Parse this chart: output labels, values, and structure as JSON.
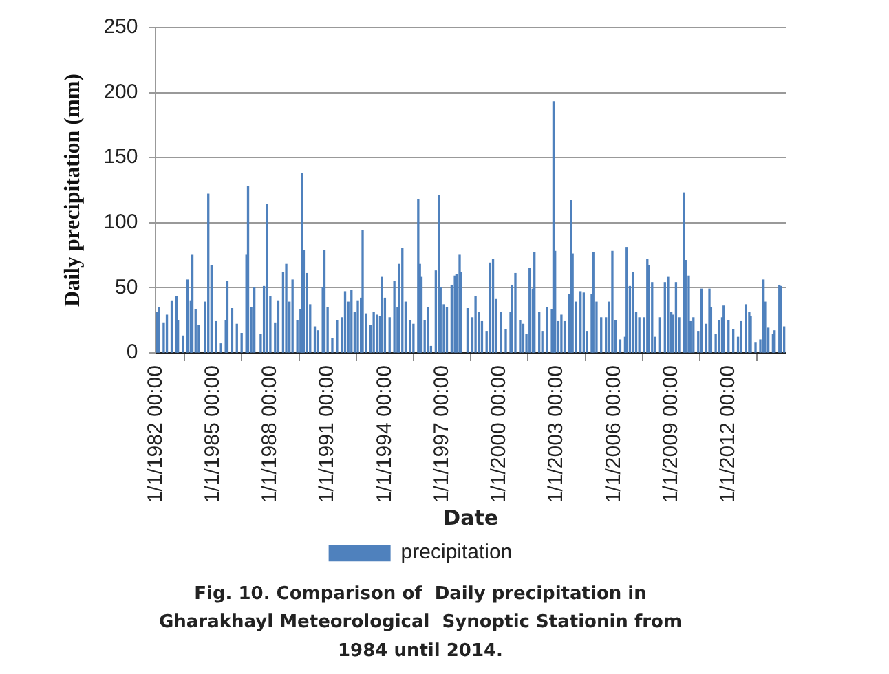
{
  "chart_data": {
    "type": "bar",
    "title": "Fig. 10. Comparison of  Daily precipitation in\nGharakhayl Meteorological  Synoptic Stationin from\n1984 until 2014.",
    "xlabel": "Date",
    "ylabel": "Daily precipitation (mm)",
    "x": [
      "1982-01-15",
      "1982-03",
      "1982-06",
      "1982-08",
      "1982-11",
      "1983-02",
      "1983-03",
      "1983-06",
      "1983-09",
      "1983-11",
      "1983-12",
      "1984-02",
      "1984-04",
      "1984-08",
      "1984-10",
      "1984-12",
      "1985-03",
      "1985-06",
      "1985-09",
      "1985-10",
      "1986-01",
      "1986-04",
      "1986-07",
      "1986-10",
      "1986-11",
      "1987-01",
      "1987-03",
      "1987-07",
      "1987-09",
      "1987-11",
      "1988-01",
      "1988-04",
      "1988-06",
      "1988-09",
      "1988-11",
      "1989-01",
      "1989-03",
      "1989-06",
      "1989-08",
      "1989-09",
      "1989-10",
      "1989-12",
      "1990-02",
      "1990-05",
      "1990-07",
      "1990-10",
      "1990-11",
      "1991-01",
      "1991-04",
      "1991-07",
      "1991-10",
      "1991-12",
      "1992-02",
      "1992-04",
      "1992-06",
      "1992-08",
      "1992-10",
      "1992-11",
      "1993-01",
      "1993-04",
      "1993-06",
      "1993-08",
      "1993-10",
      "1993-11",
      "1994-01",
      "1994-04",
      "1994-07",
      "1994-09",
      "1994-10",
      "1994-12",
      "1995-02",
      "1995-05",
      "1995-07",
      "1995-10",
      "1995-11",
      "1995-12",
      "1996-02",
      "1996-04",
      "1996-06",
      "1996-09",
      "1996-11",
      "1996-12",
      "1997-02",
      "1997-04",
      "1997-07",
      "1997-09",
      "1997-10",
      "1997-12",
      "1998-01",
      "1998-05",
      "1998-08",
      "1998-10",
      "1998-12",
      "1999-02",
      "1999-05",
      "1999-07",
      "1999-09",
      "1999-11",
      "2000-02",
      "2000-05",
      "2000-08",
      "2000-09",
      "2000-11",
      "2001-02",
      "2001-04",
      "2001-06",
      "2001-08",
      "2001-10",
      "2001-11",
      "2002-02",
      "2002-04",
      "2002-07",
      "2002-10",
      "2002-11",
      "2002-12",
      "2003-02",
      "2003-04",
      "2003-06",
      "2003-09",
      "2003-10",
      "2003-11",
      "2004-01",
      "2004-04",
      "2004-06",
      "2004-08",
      "2004-11",
      "2004-12",
      "2005-02",
      "2005-05",
      "2005-08",
      "2005-10",
      "2005-12",
      "2006-02",
      "2006-05",
      "2006-08",
      "2006-09",
      "2006-11",
      "2007-01",
      "2007-03",
      "2007-05",
      "2007-08",
      "2007-10",
      "2007-11",
      "2008-01",
      "2008-03",
      "2008-06",
      "2008-09",
      "2008-11",
      "2009-01",
      "2009-02",
      "2009-04",
      "2009-06",
      "2009-09",
      "2009-10",
      "2009-12",
      "2010-01",
      "2010-03",
      "2010-06",
      "2010-08",
      "2010-11",
      "2011-01",
      "2011-02",
      "2011-05",
      "2011-07",
      "2011-09",
      "2011-10",
      "2012-01",
      "2012-04",
      "2012-07",
      "2012-09",
      "2012-12",
      "2013-02",
      "2013-03",
      "2013-06",
      "2013-09",
      "2013-11",
      "2013-12",
      "2014-02",
      "2014-05",
      "2014-06",
      "2014-09",
      "2014-10",
      "2014-12"
    ],
    "series": [
      {
        "name": "precipitation",
        "color": "#4f81bd",
        "values": [
          31,
          35,
          23,
          29,
          40,
          43,
          25,
          13,
          56,
          40,
          75,
          33,
          21,
          39,
          122,
          67,
          24,
          7,
          25,
          55,
          34,
          22,
          15,
          75,
          128,
          35,
          50,
          14,
          51,
          114,
          43,
          23,
          40,
          62,
          68,
          39,
          56,
          25,
          33,
          138,
          79,
          61,
          37,
          20,
          17,
          50,
          79,
          35,
          11,
          25,
          27,
          47,
          39,
          48,
          31,
          40,
          42,
          94,
          30,
          21,
          31,
          29,
          28,
          58,
          42,
          27,
          55,
          35,
          68,
          80,
          39,
          25,
          22,
          118,
          68,
          58,
          25,
          35,
          5,
          63,
          121,
          50,
          37,
          35,
          52,
          59,
          60,
          75,
          62,
          34,
          27,
          43,
          31,
          24,
          16,
          69,
          72,
          41,
          31,
          18,
          31,
          52,
          61,
          25,
          22,
          14,
          65,
          49,
          77,
          31,
          16,
          35,
          33,
          193,
          78,
          24,
          29,
          24,
          45,
          117,
          76,
          39,
          47,
          46,
          16,
          45,
          77,
          39,
          27,
          27,
          39,
          78,
          25,
          10,
          12,
          81,
          51,
          62,
          31,
          27,
          27,
          72,
          67,
          54,
          12,
          27,
          54,
          58,
          31,
          29,
          54,
          27,
          123,
          71,
          59,
          24,
          27,
          16,
          49,
          22,
          49,
          35,
          14,
          25,
          27,
          36,
          25,
          18,
          12,
          24,
          37,
          31,
          28,
          8,
          10,
          56,
          39,
          19,
          14,
          17,
          52,
          51,
          20
        ]
      }
    ],
    "xlim": [
      "1982-01-01",
      "2015-01-01"
    ],
    "xticks": [
      {
        "value": "1982-01-01",
        "label": "1/1/1982 00:00"
      },
      {
        "value": "1985-01-01",
        "label": "1/1/1985 00:00"
      },
      {
        "value": "1988-01-01",
        "label": "1/1/1988 00:00"
      },
      {
        "value": "1991-01-01",
        "label": "1/1/1991 00:00"
      },
      {
        "value": "1994-01-01",
        "label": "1/1/1994 00:00"
      },
      {
        "value": "1997-01-01",
        "label": "1/1/1997 00:00"
      },
      {
        "value": "2000-01-01",
        "label": "1/1/2000 00:00"
      },
      {
        "value": "2003-01-01",
        "label": "1/1/2003 00:00"
      },
      {
        "value": "2006-01-01",
        "label": "1/1/2006 00:00"
      },
      {
        "value": "2009-01-01",
        "label": "1/1/2009 00:00"
      },
      {
        "value": "2012-01-01",
        "label": "1/1/2012 00:00"
      }
    ],
    "ylim": [
      0,
      250
    ],
    "yticks": [
      0,
      50,
      100,
      150,
      200,
      250
    ],
    "grid": "y",
    "legend": "bottom"
  }
}
